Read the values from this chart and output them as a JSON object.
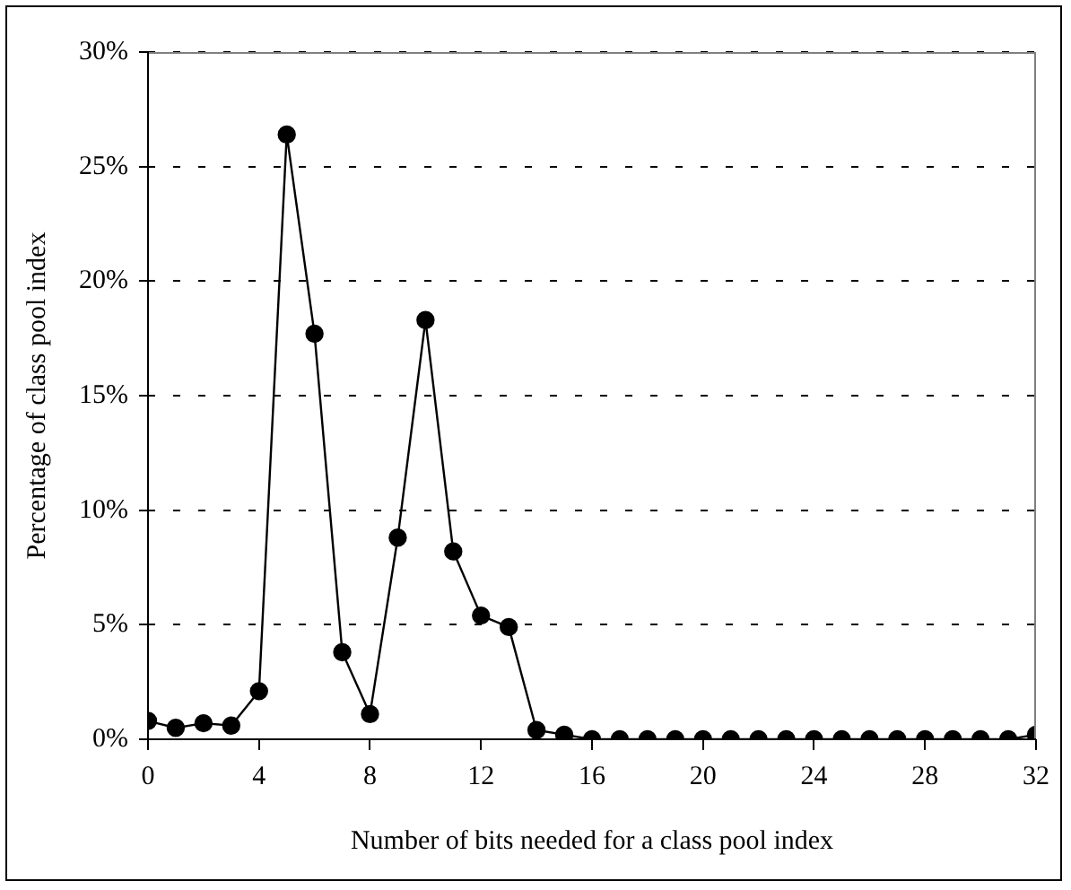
{
  "chart_data": {
    "type": "line",
    "xlabel": "Number of bits needed for a class pool index",
    "ylabel": "Percentage of class pool index",
    "x": [
      0,
      1,
      2,
      3,
      4,
      5,
      6,
      7,
      8,
      9,
      10,
      11,
      12,
      13,
      14,
      15,
      16,
      17,
      18,
      19,
      20,
      21,
      22,
      23,
      24,
      25,
      26,
      27,
      28,
      29,
      30,
      31,
      32
    ],
    "series": [
      {
        "color": "#000000",
        "values": [
          0.8,
          0.5,
          0.7,
          0.6,
          2.1,
          26.4,
          17.7,
          3.8,
          1.1,
          8.8,
          18.3,
          8.2,
          5.4,
          4.9,
          0.4,
          0.2,
          0,
          0,
          0,
          0,
          0,
          0,
          0,
          0,
          0,
          0,
          0,
          0,
          0,
          0,
          0,
          0,
          0.2
        ]
      }
    ],
    "xlim": [
      0,
      32
    ],
    "xticks": [
      0,
      4,
      8,
      12,
      16,
      20,
      24,
      28,
      32
    ],
    "ylim": [
      0,
      30
    ],
    "yticks": [
      {
        "value": 0,
        "label": "0%"
      },
      {
        "value": 5,
        "label": "5%"
      },
      {
        "value": 10,
        "label": "10%"
      },
      {
        "value": 15,
        "label": "15%"
      },
      {
        "value": 20,
        "label": "20%"
      },
      {
        "value": 25,
        "label": "25%"
      },
      {
        "value": 30,
        "label": "30%"
      }
    ],
    "grid": "y",
    "legend": false,
    "marker": "circle",
    "line_style": "solid"
  }
}
